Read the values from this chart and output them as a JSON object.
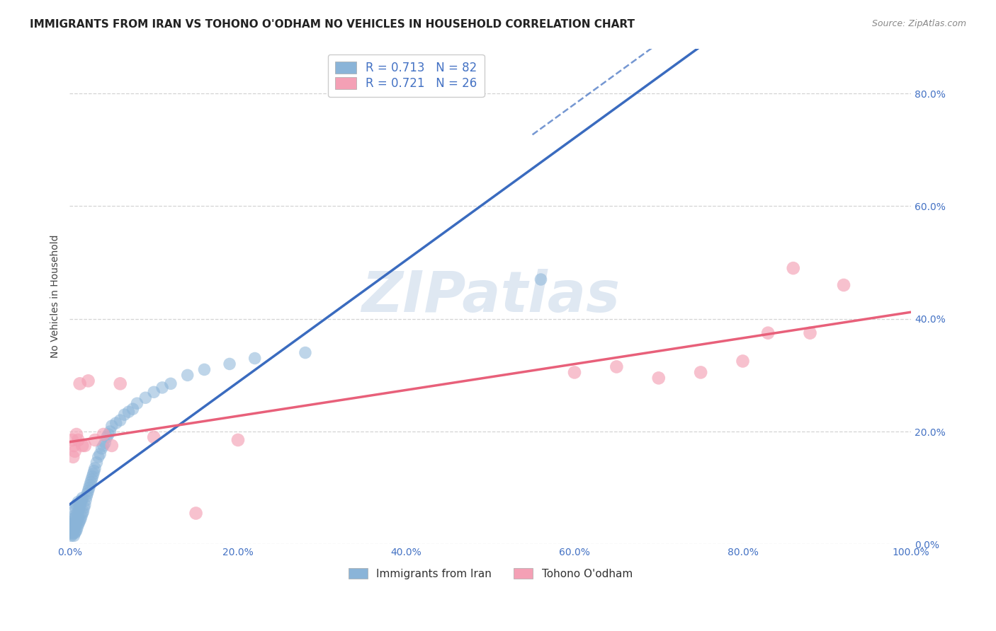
{
  "title": "IMMIGRANTS FROM IRAN VS TOHONO O'ODHAM NO VEHICLES IN HOUSEHOLD CORRELATION CHART",
  "source": "Source: ZipAtlas.com",
  "ylabel": "No Vehicles in Household",
  "xlim": [
    0.0,
    1.0
  ],
  "ylim": [
    0.0,
    0.88
  ],
  "yticks": [
    0.0,
    0.2,
    0.4,
    0.6,
    0.8
  ],
  "xticks": [
    0.0,
    0.2,
    0.4,
    0.6,
    0.8,
    1.0
  ],
  "blue_R": 0.713,
  "blue_N": 82,
  "pink_R": 0.721,
  "pink_N": 26,
  "blue_color": "#8ab4d8",
  "pink_color": "#f4a0b5",
  "blue_line_color": "#3a6bbf",
  "pink_line_color": "#e8607a",
  "legend_label_blue": "Immigrants from Iran",
  "legend_label_pink": "Tohono O'odham",
  "watermark": "ZIPatlas",
  "blue_scatter_x": [
    0.001,
    0.001,
    0.002,
    0.002,
    0.002,
    0.003,
    0.003,
    0.003,
    0.003,
    0.004,
    0.004,
    0.004,
    0.005,
    0.005,
    0.005,
    0.005,
    0.006,
    0.006,
    0.006,
    0.007,
    0.007,
    0.007,
    0.007,
    0.008,
    0.008,
    0.008,
    0.009,
    0.009,
    0.01,
    0.01,
    0.01,
    0.011,
    0.011,
    0.012,
    0.012,
    0.013,
    0.013,
    0.014,
    0.014,
    0.015,
    0.015,
    0.016,
    0.017,
    0.018,
    0.019,
    0.02,
    0.021,
    0.022,
    0.023,
    0.024,
    0.025,
    0.026,
    0.027,
    0.028,
    0.029,
    0.03,
    0.032,
    0.034,
    0.036,
    0.038,
    0.04,
    0.042,
    0.044,
    0.046,
    0.048,
    0.05,
    0.055,
    0.06,
    0.065,
    0.07,
    0.075,
    0.08,
    0.09,
    0.1,
    0.11,
    0.12,
    0.14,
    0.16,
    0.19,
    0.22,
    0.28,
    0.56
  ],
  "blue_scatter_y": [
    0.02,
    0.03,
    0.015,
    0.025,
    0.035,
    0.018,
    0.022,
    0.028,
    0.04,
    0.02,
    0.032,
    0.045,
    0.015,
    0.025,
    0.038,
    0.05,
    0.02,
    0.03,
    0.06,
    0.022,
    0.035,
    0.048,
    0.065,
    0.025,
    0.04,
    0.07,
    0.03,
    0.055,
    0.035,
    0.048,
    0.075,
    0.038,
    0.062,
    0.042,
    0.068,
    0.045,
    0.072,
    0.05,
    0.078,
    0.055,
    0.082,
    0.058,
    0.065,
    0.07,
    0.078,
    0.085,
    0.09,
    0.095,
    0.1,
    0.105,
    0.11,
    0.115,
    0.12,
    0.125,
    0.13,
    0.135,
    0.145,
    0.155,
    0.16,
    0.17,
    0.175,
    0.18,
    0.19,
    0.195,
    0.2,
    0.21,
    0.215,
    0.22,
    0.23,
    0.235,
    0.24,
    0.25,
    0.26,
    0.27,
    0.278,
    0.285,
    0.3,
    0.31,
    0.32,
    0.33,
    0.34,
    0.47
  ],
  "pink_scatter_x": [
    0.003,
    0.004,
    0.005,
    0.006,
    0.008,
    0.01,
    0.012,
    0.015,
    0.018,
    0.022,
    0.03,
    0.04,
    0.05,
    0.06,
    0.1,
    0.15,
    0.2,
    0.6,
    0.65,
    0.7,
    0.75,
    0.8,
    0.83,
    0.86,
    0.88,
    0.92
  ],
  "pink_scatter_y": [
    0.185,
    0.155,
    0.175,
    0.165,
    0.195,
    0.185,
    0.285,
    0.175,
    0.175,
    0.29,
    0.185,
    0.195,
    0.175,
    0.285,
    0.19,
    0.055,
    0.185,
    0.305,
    0.315,
    0.295,
    0.305,
    0.325,
    0.375,
    0.49,
    0.375,
    0.46
  ],
  "grid_color": "#d0d0d0",
  "background_color": "#ffffff",
  "title_fontsize": 11,
  "axis_label_fontsize": 10,
  "tick_fontsize": 10,
  "source_fontsize": 9,
  "tick_color": "#4472c4"
}
